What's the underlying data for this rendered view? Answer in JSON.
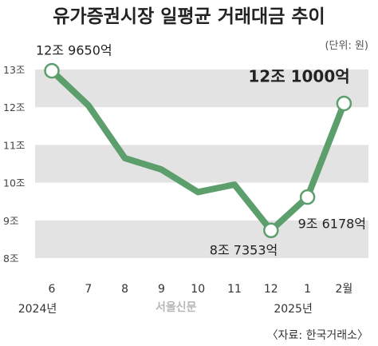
{
  "title": "유가증권시장 일평균 거래대금 추이",
  "unit": "(단위: 원)",
  "source": "〈자료: 한국거래소〉",
  "logo": "서울신문",
  "colors": {
    "line": "#5c9e6c",
    "band": "#e3e3e3",
    "marker_fill": "#ffffff"
  },
  "chart_data": {
    "type": "line",
    "categories": [
      "6",
      "7",
      "8",
      "9",
      "10",
      "11",
      "12",
      "1",
      "2월"
    ],
    "year_labels": [
      {
        "index": 0,
        "text": "2024년"
      },
      {
        "index": 7,
        "text": "2025년"
      }
    ],
    "series": [
      {
        "values": [
          12.965,
          12.05,
          10.65,
          10.35,
          9.75,
          9.95,
          8.735,
          9.6178,
          12.1
        ]
      }
    ],
    "ylim": [
      8,
      13
    ],
    "yticks": [
      {
        "value": 13,
        "label": "13조"
      },
      {
        "value": 12,
        "label": "12조"
      },
      {
        "value": 11,
        "label": "11조"
      },
      {
        "value": 10,
        "label": "10조"
      },
      {
        "value": 9,
        "label": "9조"
      },
      {
        "value": 8,
        "label": "8조"
      }
    ],
    "markers": [
      0,
      6,
      7,
      8
    ],
    "annotations": [
      {
        "index": 0,
        "text": "12조 9650억",
        "style": "normal"
      },
      {
        "index": 6,
        "text": "8조 7353억",
        "style": "normal"
      },
      {
        "index": 7,
        "text": "9조 6178억",
        "style": "normal"
      },
      {
        "index": 8,
        "text": "12조 1000억",
        "style": "bold"
      }
    ],
    "grid": "alternating horizontal bands",
    "legend": "none"
  }
}
